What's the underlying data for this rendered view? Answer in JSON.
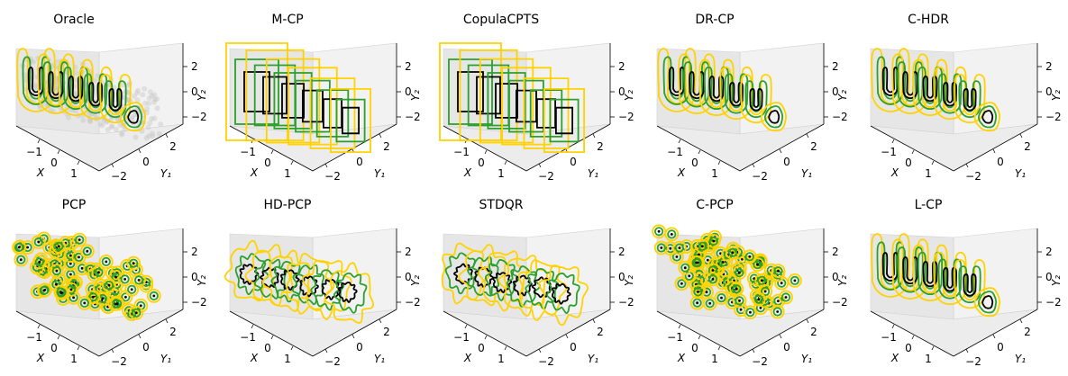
{
  "figure": {
    "colors": {
      "outer": "#ffd200",
      "middle": "#2ca02c",
      "inner": "#000000",
      "pane_back": "#f2f2f2",
      "pane_side": "#e6e6e6",
      "pane_floor": "#ececec",
      "samples": "#c8c8c8"
    },
    "axis_labels": {
      "x": "X",
      "y1": "Y₁",
      "y2": "Y₂"
    },
    "ticks": {
      "x": [
        "−1",
        "0",
        "1"
      ],
      "y1": [
        "−2",
        "0",
        "2"
      ],
      "y2": [
        "2",
        "0",
        "−2"
      ]
    }
  },
  "chart_data": [
    {
      "type": "contour",
      "title": "Oracle",
      "style": "smooth",
      "show_samples": true,
      "levels": [
        "outer",
        "middle",
        "inner"
      ],
      "xlim": [
        -1.6,
        1.6
      ],
      "y1lim": [
        -3,
        3
      ],
      "y2lim": [
        -3,
        3
      ]
    },
    {
      "type": "contour",
      "title": "M-CP",
      "style": "rect",
      "levels": [
        "outer",
        "middle",
        "inner"
      ],
      "xlim": [
        -1.6,
        1.6
      ],
      "y1lim": [
        -3,
        3
      ],
      "y2lim": [
        -3,
        3
      ]
    },
    {
      "type": "contour",
      "title": "CopulaCPTS",
      "style": "rect",
      "levels": [
        "outer",
        "middle",
        "inner"
      ],
      "xlim": [
        -1.6,
        1.6
      ],
      "y1lim": [
        -3,
        3
      ],
      "y2lim": [
        -3,
        3
      ]
    },
    {
      "type": "contour",
      "title": "DR-CP",
      "style": "smooth",
      "levels": [
        "outer",
        "middle",
        "inner"
      ],
      "xlim": [
        -1.6,
        1.6
      ],
      "y1lim": [
        -3,
        3
      ],
      "y2lim": [
        -3,
        3
      ]
    },
    {
      "type": "contour",
      "title": "C-HDR",
      "style": "smooth",
      "levels": [
        "outer",
        "middle",
        "inner"
      ],
      "xlim": [
        -1.6,
        1.6
      ],
      "y1lim": [
        -3,
        3
      ],
      "y2lim": [
        -3,
        3
      ]
    },
    {
      "type": "contour",
      "title": "PCP",
      "style": "balls",
      "levels": [
        "outer",
        "middle",
        "inner"
      ],
      "xlim": [
        -1.6,
        1.6
      ],
      "y1lim": [
        -3,
        3
      ],
      "y2lim": [
        -3,
        3
      ]
    },
    {
      "type": "contour",
      "title": "HD-PCP",
      "style": "wiggly",
      "levels": [
        "outer",
        "middle",
        "inner"
      ],
      "xlim": [
        -1.6,
        1.6
      ],
      "y1lim": [
        -3,
        3
      ],
      "y2lim": [
        -3,
        3
      ]
    },
    {
      "type": "contour",
      "title": "STDQR",
      "style": "wiggly",
      "levels": [
        "outer",
        "middle",
        "inner"
      ],
      "xlim": [
        -1.6,
        1.6
      ],
      "y1lim": [
        -3,
        3
      ],
      "y2lim": [
        -3,
        3
      ]
    },
    {
      "type": "contour",
      "title": "C-PCP",
      "style": "balls",
      "levels": [
        "outer",
        "middle",
        "inner"
      ],
      "xlim": [
        -1.6,
        1.6
      ],
      "y1lim": [
        -3,
        3
      ],
      "y2lim": [
        -3,
        3
      ]
    },
    {
      "type": "contour",
      "title": "L-CP",
      "style": "smooth",
      "levels": [
        "outer",
        "middle",
        "inner"
      ],
      "xlim": [
        -1.6,
        1.6
      ],
      "y1lim": [
        -3,
        3
      ],
      "y2lim": [
        -3,
        3
      ]
    }
  ]
}
